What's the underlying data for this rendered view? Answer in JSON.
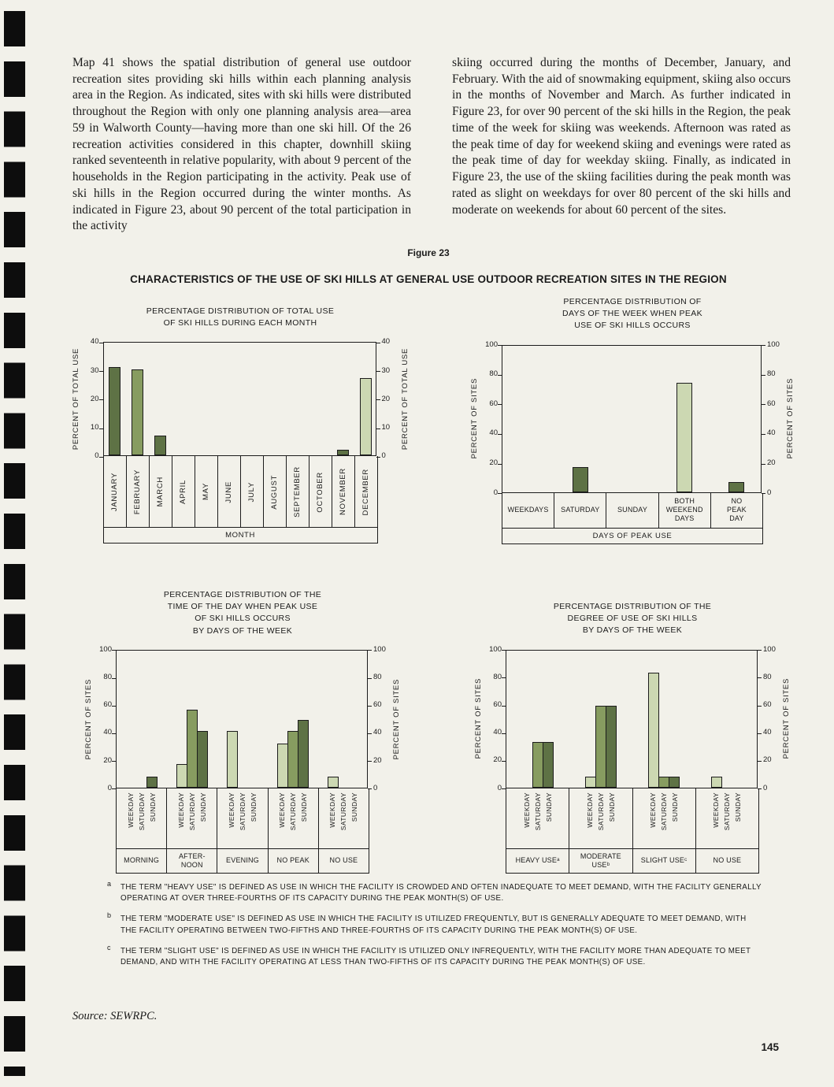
{
  "page": {
    "figure_label": "Figure 23",
    "figure_title": "CHARACTERISTICS OF THE USE OF SKI HILLS AT GENERAL USE OUTDOOR RECREATION SITES IN THE REGION",
    "source": "Source:  SEWRPC.",
    "page_number": "145"
  },
  "body_text": {
    "left_column": "Map 41 shows the spatial distribution of general use outdoor recreation sites providing ski hills within each planning analysis area in the Region. As indicated, sites with ski hills were distributed throughout the Region with only one planning analysis area—area 59 in Walworth County—having more than one ski hill. Of the 26 recreation activities considered in this chapter, downhill skiing ranked seventeenth in relative popularity, with about 9 percent of the households in the Region participating in the activity. Peak use of ski hills in the Region occurred during the winter months. As indicated in Figure 23, about 90 percent of the total participation in the activity",
    "right_column": "skiing occurred during the months of December, January, and February. With the aid of snowmaking equipment, skiing also occurs in the months of November and March. As further indicated in Figure 23, for over 90 percent of the ski hills in the Region, the peak time of the week for skiing was weekends. Afternoon was rated as the peak time of day for weekend skiing and evenings were rated as the peak time of day for weekday skiing. Finally, as indicated in Figure 23, the use of the skiing facilities during the peak month was rated as slight on weekdays for over 80 percent of the ski hills and moderate on weekends for about 60 percent of the sites."
  },
  "footnotes": [
    {
      "marker": "a",
      "text": "THE TERM \"HEAVY USE\" IS DEFINED AS USE IN WHICH THE FACILITY IS CROWDED AND OFTEN INADEQUATE TO MEET DEMAND, WITH THE FACILITY GENERALLY OPERATING AT OVER THREE-FOURTHS OF ITS CAPACITY DURING THE PEAK MONTH(S) OF USE."
    },
    {
      "marker": "b",
      "text": "THE TERM \"MODERATE USE\" IS DEFINED AS USE IN WHICH THE FACILITY IS UTILIZED FREQUENTLY, BUT IS GENERALLY ADEQUATE TO MEET DEMAND, WITH THE FACILITY OPERATING BETWEEN TWO-FIFTHS AND THREE-FOURTHS OF ITS CAPACITY DURING THE PEAK MONTH(S) OF USE."
    },
    {
      "marker": "c",
      "text": "THE TERM \"SLIGHT USE\" IS DEFINED AS USE IN WHICH THE FACILITY IS UTILIZED ONLY INFREQUENTLY, WITH THE FACILITY MORE THAN ADEQUATE TO MEET DEMAND, AND WITH THE FACILITY OPERATING AT LESS THAN TWO-FIFTHS OF ITS CAPACITY DURING THE PEAK MONTH(S) OF USE."
    }
  ],
  "colors": {
    "bar_dark": "#5e7245",
    "bar_medium": "#879c60",
    "bar_light": "#ccd8b2",
    "axis": "#1c1c1c",
    "paper": "#f2f1ea"
  },
  "chart_data": [
    {
      "type": "bar",
      "title_lines": [
        "PERCENTAGE DISTRIBUTION OF TOTAL USE",
        "OF SKI HILLS DURING EACH MONTH"
      ],
      "ylabel": "PERCENT OF TOTAL USE",
      "ylim": [
        0,
        40
      ],
      "ytick_step": 10,
      "grid": false,
      "xlabel": "MONTH",
      "category_orientation": "vertical",
      "categories": [
        "JANUARY",
        "FEBRUARY",
        "MARCH",
        "APRIL",
        "MAY",
        "JUNE",
        "JULY",
        "AUGUST",
        "SEPTEMBER",
        "OCTOBER",
        "NOVEMBER",
        "DECEMBER"
      ],
      "values": [
        31,
        30,
        7,
        0,
        0,
        0,
        0,
        0,
        0,
        0,
        2,
        27
      ],
      "bar_colors": [
        "dark",
        "medium",
        "dark",
        "dark",
        "dark",
        "dark",
        "dark",
        "dark",
        "dark",
        "dark",
        "dark",
        "light"
      ]
    },
    {
      "type": "bar",
      "title_lines": [
        "PERCENTAGE DISTRIBUTION OF",
        "DAYS OF THE WEEK WHEN PEAK",
        "USE OF SKI HILLS OCCURS"
      ],
      "ylabel": "PERCENT OF SITES",
      "ylim": [
        0,
        100
      ],
      "ytick_step": 20,
      "grid": false,
      "xlabel": "DAYS OF PEAK USE",
      "category_orientation": "horizontal",
      "categories": [
        "WEEKDAYS",
        "SATURDAY",
        "SUNDAY",
        "BOTH\nWEEKEND\nDAYS",
        "NO\nPEAK\nDAY"
      ],
      "values": [
        0,
        17,
        0,
        74,
        7
      ],
      "bar_colors": [
        "dark",
        "dark",
        "dark",
        "light",
        "dark"
      ]
    },
    {
      "type": "grouped-bar",
      "title_lines": [
        "PERCENTAGE DISTRIBUTION OF THE",
        "TIME OF THE DAY WHEN PEAK USE",
        "OF SKI HILLS OCCURS",
        "BY DAYS OF THE WEEK"
      ],
      "ylabel": "PERCENT OF SITES",
      "ylim": [
        0,
        100
      ],
      "ytick_step": 20,
      "grid": false,
      "series": [
        "WEEKDAY",
        "SATURDAY",
        "SUNDAY"
      ],
      "series_colors": [
        "light",
        "medium",
        "dark"
      ],
      "groups": [
        "MORNING",
        "AFTER-\nNOON",
        "EVENING",
        "NO PEAK",
        "NO USE"
      ],
      "values": [
        [
          0,
          0,
          8
        ],
        [
          17,
          56,
          41
        ],
        [
          41,
          0,
          0
        ],
        [
          32,
          41,
          49
        ],
        [
          8,
          0,
          0
        ]
      ]
    },
    {
      "type": "grouped-bar",
      "title_lines": [
        "PERCENTAGE DISTRIBUTION OF THE",
        "DEGREE OF USE OF SKI HILLS",
        "BY DAYS OF THE WEEK"
      ],
      "ylabel": "PERCENT OF SITES",
      "ylim": [
        0,
        100
      ],
      "ytick_step": 20,
      "grid": false,
      "series": [
        "WEEKDAY",
        "SATURDAY",
        "SUNDAY"
      ],
      "series_colors": [
        "light",
        "medium",
        "dark"
      ],
      "groups": [
        "HEAVY USEᵃ",
        "MODERATE\nUSEᵇ",
        "SLIGHT USEᶜ",
        "NO USE"
      ],
      "values": [
        [
          0,
          33,
          33
        ],
        [
          8,
          59,
          59
        ],
        [
          83,
          8,
          8
        ],
        [
          8,
          0,
          0
        ]
      ]
    }
  ]
}
